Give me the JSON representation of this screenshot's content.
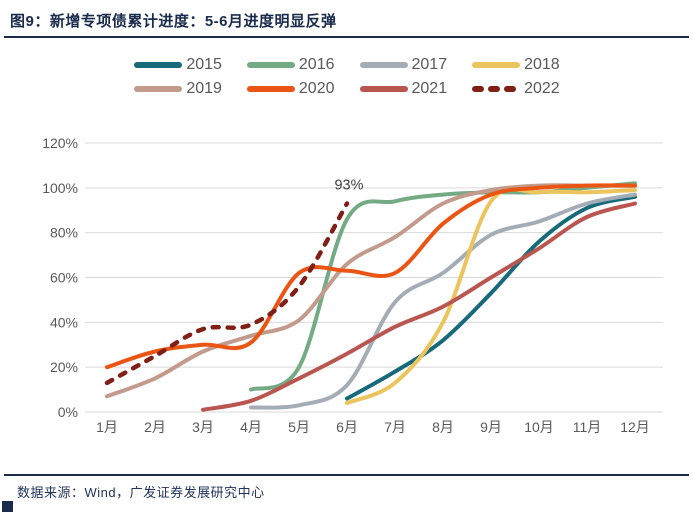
{
  "page": {
    "title": "图9：新增专项债累计进度：5-6月进度明显反弹",
    "footer_source": "数据来源：Wind，广发证券发展研究中心"
  },
  "colors": {
    "title_navy": "#1A2B4C",
    "footer_navy": "#21345C",
    "axis_text": "#595959",
    "gridline": "#D9D9D9",
    "annotation_text": "#404040",
    "background": "#FFFFFF"
  },
  "chart_data": {
    "type": "line",
    "title": "新增专项债累计进度（按年对比）",
    "categories": [
      "1月",
      "2月",
      "3月",
      "4月",
      "5月",
      "6月",
      "7月",
      "8月",
      "9月",
      "10月",
      "11月",
      "12月"
    ],
    "y_ticks": [
      "0%",
      "20%",
      "40%",
      "60%",
      "80%",
      "100%",
      "120%"
    ],
    "ylim": [
      0,
      120
    ],
    "unit": "%",
    "grid": "horizontal-only",
    "legend_position": "top-center-two-rows",
    "annotation": {
      "text": "93%",
      "series": "2022",
      "category": "6月",
      "value": 93
    },
    "series": [
      {
        "name": "2015",
        "color": "#176A7A",
        "dashed": false,
        "values": [
          null,
          null,
          null,
          null,
          null,
          6,
          18,
          32,
          53,
          76,
          91,
          96
        ]
      },
      {
        "name": "2016",
        "color": "#74AB85",
        "dashed": false,
        "values": [
          null,
          null,
          null,
          10,
          20,
          86,
          94,
          97,
          98,
          98,
          100,
          102
        ]
      },
      {
        "name": "2017",
        "color": "#A4ACB6",
        "dashed": false,
        "values": [
          null,
          null,
          null,
          2,
          3,
          12,
          49,
          62,
          79,
          85,
          93,
          97
        ]
      },
      {
        "name": "2018",
        "color": "#EBC45E",
        "dashed": false,
        "values": [
          null,
          null,
          null,
          null,
          null,
          4,
          13,
          40,
          94,
          98,
          98,
          99
        ]
      },
      {
        "name": "2019",
        "color": "#C29B8C",
        "dashed": false,
        "values": [
          7,
          15,
          27,
          34,
          41,
          66,
          78,
          93,
          99,
          101,
          101,
          101
        ]
      },
      {
        "name": "2020",
        "color": "#EA5514",
        "dashed": false,
        "values": [
          20,
          27,
          30,
          31,
          62,
          63,
          62,
          84,
          97,
          100,
          101,
          101
        ]
      },
      {
        "name": "2021",
        "color": "#BA5650",
        "dashed": false,
        "values": [
          null,
          null,
          1,
          5,
          15,
          26,
          38,
          47,
          60,
          73,
          87,
          93
        ]
      },
      {
        "name": "2022",
        "color": "#7F1F15",
        "dashed": true,
        "values": [
          13,
          25,
          37,
          39,
          56,
          93,
          null,
          null,
          null,
          null,
          null,
          null
        ]
      }
    ]
  }
}
